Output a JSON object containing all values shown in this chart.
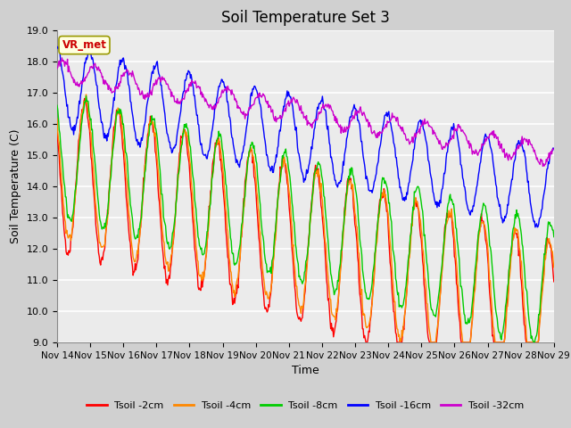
{
  "title": "Soil Temperature Set 3",
  "xlabel": "Time",
  "ylabel": "Soil Temperature (C)",
  "ylim": [
    9.0,
    19.0
  ],
  "yticks": [
    9.0,
    10.0,
    11.0,
    12.0,
    13.0,
    14.0,
    15.0,
    16.0,
    17.0,
    18.0,
    19.0
  ],
  "xtick_labels": [
    "Nov 14",
    "Nov 15",
    "Nov 16",
    "Nov 17",
    "Nov 18",
    "Nov 19",
    "Nov 20",
    "Nov 21",
    "Nov 22",
    "Nov 23",
    "Nov 24",
    "Nov 25",
    "Nov 26",
    "Nov 27",
    "Nov 28",
    "Nov 29"
  ],
  "colors": {
    "tsoil_2cm": "#ff0000",
    "tsoil_4cm": "#ff8800",
    "tsoil_8cm": "#00cc00",
    "tsoil_16cm": "#0000ff",
    "tsoil_32cm": "#cc00cc"
  },
  "legend_labels": [
    "Tsoil -2cm",
    "Tsoil -4cm",
    "Tsoil -8cm",
    "Tsoil -16cm",
    "Tsoil -32cm"
  ],
  "annotation_text": "VR_met",
  "annotation_color": "#cc0000",
  "annotation_bg": "#ffffe0",
  "annotation_border": "#999900",
  "plot_bg": "#ebebeb",
  "fig_bg": "#d0d0d0",
  "grid_color": "#ffffff",
  "title_fontsize": 12,
  "axis_fontsize": 9,
  "tick_fontsize": 8
}
